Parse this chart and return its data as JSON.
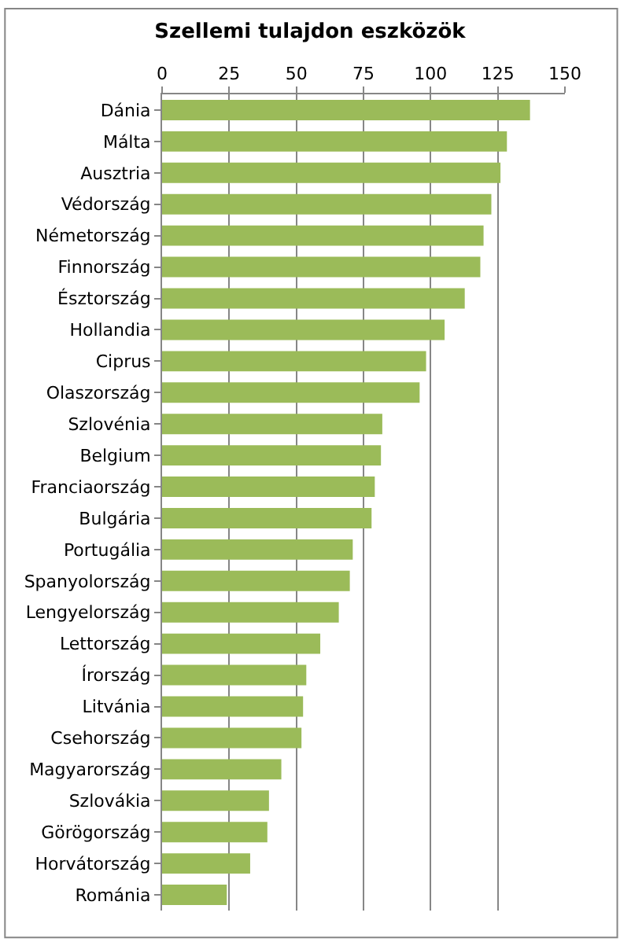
{
  "chart_data": {
    "type": "bar",
    "orientation": "horizontal",
    "title": "Szellemi tulajdon eszközök",
    "categories": [
      "Dánia",
      "Málta",
      "Ausztria",
      "Védország",
      "Németország",
      "Finnország",
      "Észtország",
      "Hollandia",
      "Ciprus",
      "Olaszország",
      "Szlovénia",
      "Belgium",
      "Franciaország",
      "Bulgária",
      "Portugália",
      "Spanyolország",
      "Lengyelország",
      "Lettország",
      "Írország",
      "Litvánia",
      "Csehország",
      "Magyarország",
      "Szlovákia",
      "Görögország",
      "Horvátország",
      "Románia"
    ],
    "values": [
      137,
      128.4,
      126,
      122.6,
      119.7,
      118.5,
      112.7,
      105.2,
      98.3,
      95.9,
      82,
      81.5,
      79.2,
      78,
      71,
      69.9,
      65.8,
      58.9,
      53.7,
      52.5,
      51.9,
      44.4,
      39.8,
      39.2,
      32.8,
      24.1
    ],
    "color": "#9bbb59",
    "xlim": [
      0,
      150
    ],
    "xticks": [
      0,
      25,
      50,
      75,
      100,
      125,
      150
    ],
    "grid": "x"
  }
}
